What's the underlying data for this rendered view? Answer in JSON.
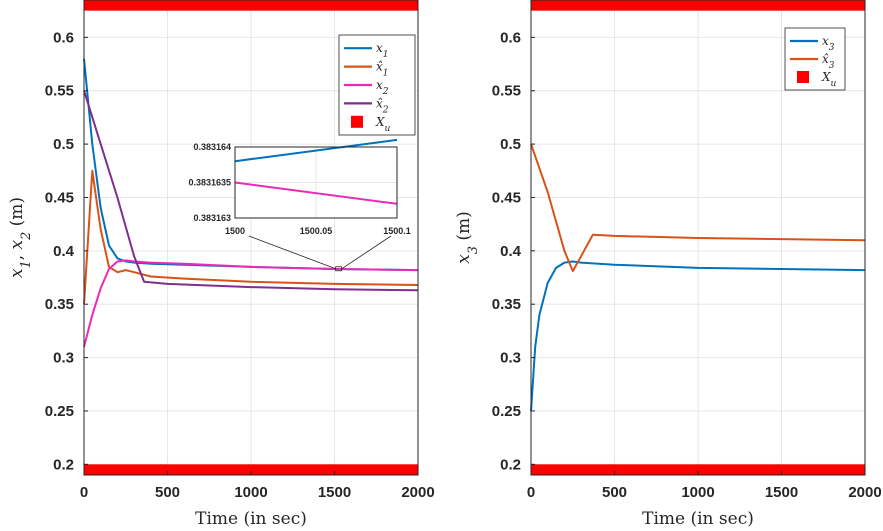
{
  "chart_data": [
    {
      "type": "line",
      "xlabel": "Time (in sec)",
      "ylabel": "x_1, x_2 (m)",
      "xlim": [
        0,
        2000
      ],
      "ylim": [
        0.19,
        0.635
      ],
      "xticks": [
        "0",
        "500",
        "1000",
        "1500",
        "2000"
      ],
      "yticks": [
        "0.2",
        "0.25",
        "0.3",
        "0.35",
        "0.4",
        "0.45",
        "0.5",
        "0.55",
        "0.6"
      ],
      "grid": true,
      "legend_position": "top-right",
      "unsafe_region": {
        "name": "X_u",
        "color": "#ff0000",
        "y_above": 0.625,
        "y_below": 0.2
      },
      "series": [
        {
          "name": "x_1",
          "color": "#0072bd",
          "x": [
            0,
            50,
            100,
            150,
            200,
            250,
            300,
            400,
            600,
            1000,
            1500,
            2000
          ],
          "y": [
            0.58,
            0.5,
            0.44,
            0.405,
            0.393,
            0.39,
            0.389,
            0.388,
            0.387,
            0.385,
            0.383,
            0.382
          ]
        },
        {
          "name": "x̂_1",
          "color": "#d95319",
          "x": [
            0,
            50,
            100,
            150,
            200,
            250,
            300,
            400,
            600,
            1000,
            1500,
            2000
          ],
          "y": [
            0.35,
            0.475,
            0.42,
            0.385,
            0.38,
            0.382,
            0.38,
            0.376,
            0.374,
            0.371,
            0.369,
            0.368
          ]
        },
        {
          "name": "x_2",
          "color": "#ec2ab8",
          "x": [
            0,
            50,
            100,
            150,
            200,
            250,
            300,
            400,
            600,
            1000,
            1500,
            2000
          ],
          "y": [
            0.31,
            0.34,
            0.365,
            0.383,
            0.39,
            0.391,
            0.39,
            0.389,
            0.388,
            0.385,
            0.383,
            0.382
          ]
        },
        {
          "name": "x̂_2",
          "color": "#7e2f8e",
          "x": [
            0,
            100,
            200,
            300,
            360,
            500,
            1000,
            1500,
            2000
          ],
          "y": [
            0.55,
            0.5,
            0.45,
            0.395,
            0.371,
            0.369,
            0.366,
            0.364,
            0.363
          ]
        }
      ],
      "inset": {
        "xlim": [
          1500,
          1500.1
        ],
        "ylim": [
          0.383163,
          0.383164
        ],
        "xticks": [
          "1500",
          "1500.05",
          "1500.1"
        ],
        "yticks": [
          "0.383163",
          "0.3831635",
          "0.383164"
        ],
        "series": [
          {
            "name": "x_1",
            "color": "#0072bd",
            "x": [
              1500,
              1500.1
            ],
            "y": [
              0.3831638,
              0.3831641
            ]
          },
          {
            "name": "x_2",
            "color": "#ec2ab8",
            "x": [
              1500,
              1500.1
            ],
            "y": [
              0.3831635,
              0.3831632
            ]
          }
        ]
      }
    },
    {
      "type": "line",
      "xlabel": "Time (in sec)",
      "ylabel": "x_3 (m)",
      "xlim": [
        0,
        2000
      ],
      "ylim": [
        0.19,
        0.635
      ],
      "xticks": [
        "0",
        "500",
        "1000",
        "1500",
        "2000"
      ],
      "yticks": [
        "0.2",
        "0.25",
        "0.3",
        "0.35",
        "0.4",
        "0.45",
        "0.5",
        "0.55",
        "0.6"
      ],
      "grid": true,
      "legend_position": "top-right",
      "unsafe_region": {
        "name": "X_u",
        "color": "#ff0000",
        "y_above": 0.625,
        "y_below": 0.2
      },
      "series": [
        {
          "name": "x_3",
          "color": "#0072bd",
          "x": [
            0,
            25,
            50,
            100,
            150,
            200,
            250,
            300,
            500,
            1000,
            1500,
            2000
          ],
          "y": [
            0.25,
            0.31,
            0.34,
            0.37,
            0.384,
            0.389,
            0.39,
            0.389,
            0.387,
            0.384,
            0.383,
            0.382
          ]
        },
        {
          "name": "x̂_3",
          "color": "#d95319",
          "x": [
            0,
            100,
            200,
            250,
            300,
            370,
            500,
            1000,
            1500,
            2000
          ],
          "y": [
            0.5,
            0.455,
            0.4,
            0.381,
            0.395,
            0.415,
            0.414,
            0.412,
            0.411,
            0.41
          ]
        }
      ]
    }
  ]
}
